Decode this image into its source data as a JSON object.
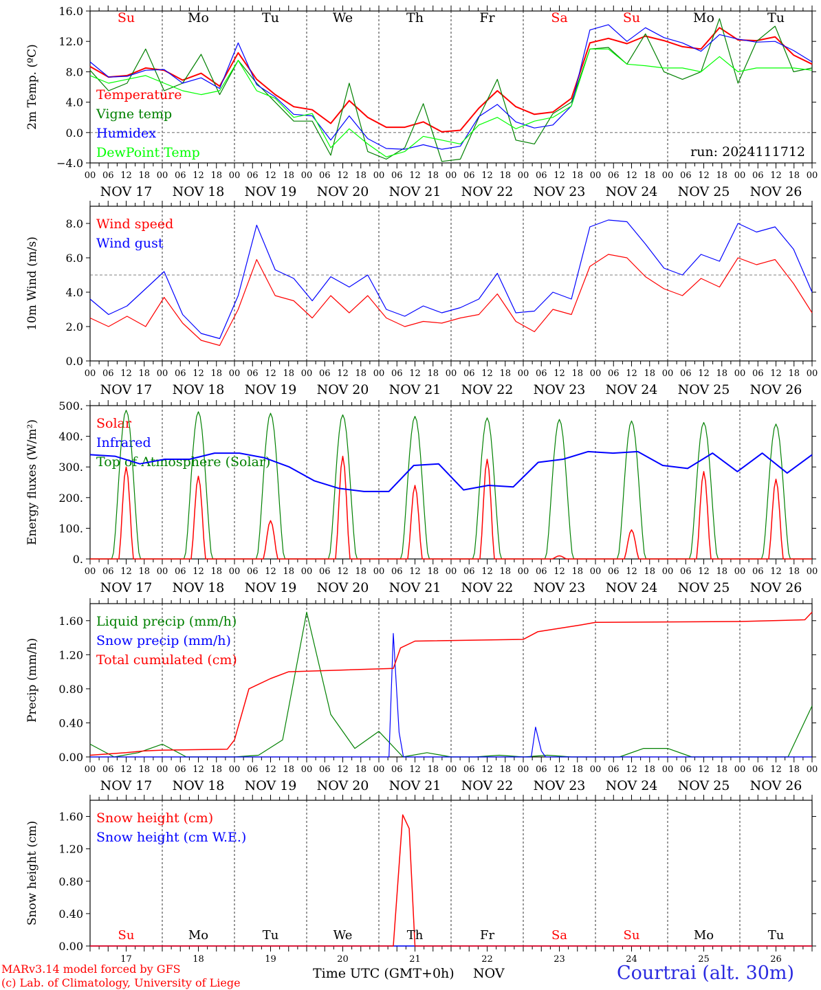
{
  "chart_data": [
    {
      "type": "line",
      "ylabel": "2m Temp. (ºC)",
      "ylim": [
        -4,
        16
      ],
      "yticks": [
        "−4.0",
        "0.0",
        "4.0",
        "8.0",
        "12.0",
        "16.0"
      ],
      "reference_line": 0,
      "weekday_labels": [
        "Su",
        "Mo",
        "Tu",
        "We",
        "Th",
        "Fr",
        "Sa",
        "Su",
        "Mo",
        "Tu"
      ],
      "annotation": "run: 2024111712",
      "series": [
        {
          "name": "Temperature",
          "color": "#ff0000",
          "values": [
            8.7,
            7.3,
            7.5,
            8.5,
            8.2,
            6.9,
            7.8,
            6.1,
            10.5,
            7.0,
            5.0,
            3.4,
            3.0,
            1.2,
            4.2,
            2.0,
            0.7,
            0.7,
            1.4,
            0.1,
            0.3,
            3.2,
            5.5,
            3.4,
            2.4,
            2.7,
            4.5,
            11.8,
            12.4,
            11.7,
            12.7,
            12.1,
            11.3,
            11.0,
            13.8,
            12.2,
            12.1,
            12.6,
            10.2,
            9.0
          ]
        },
        {
          "name": "Vigne temp",
          "color": "#008000",
          "values": [
            8.2,
            5.5,
            6.5,
            11.0,
            5.5,
            6.5,
            10.3,
            5.0,
            9.5,
            6.5,
            4.0,
            1.5,
            1.5,
            -3.0,
            6.5,
            -2.5,
            -3.5,
            -2.0,
            3.8,
            -3.8,
            -3.5,
            2.0,
            7.0,
            -1.0,
            -1.5,
            2.5,
            4.0,
            11.0,
            11.2,
            9.0,
            13.0,
            8.0,
            7.0,
            8.0,
            15.0,
            6.5,
            12.0,
            14.0,
            8.0,
            8.5
          ]
        },
        {
          "name": "Humidex",
          "color": "#0000ff",
          "values": [
            9.3,
            7.3,
            7.4,
            8.2,
            8.3,
            6.5,
            7.2,
            5.8,
            11.8,
            6.3,
            4.7,
            2.4,
            2.2,
            -1.0,
            2.2,
            -0.8,
            -2.1,
            -2.2,
            -1.6,
            -2.2,
            -1.8,
            2.1,
            3.7,
            1.4,
            0.6,
            1.0,
            3.5,
            13.5,
            14.2,
            12.0,
            13.8,
            12.5,
            11.8,
            10.7,
            12.9,
            12.3,
            11.9,
            12.0,
            10.8,
            9.3
          ]
        },
        {
          "name": "DewPoint Temp",
          "color": "#00ff00",
          "values": [
            7.5,
            6.5,
            7.0,
            7.5,
            6.5,
            5.5,
            5.0,
            5.5,
            9.5,
            5.5,
            4.5,
            2.0,
            2.5,
            -2.0,
            0.5,
            -1.5,
            -3.2,
            -2.5,
            -0.5,
            -1.0,
            -1.5,
            1.0,
            2.0,
            0.5,
            1.5,
            2.0,
            3.5,
            11.0,
            11.0,
            9.0,
            8.8,
            8.5,
            8.5,
            8.0,
            10.0,
            8.0,
            8.5,
            8.5,
            8.5,
            8.2
          ]
        }
      ]
    },
    {
      "type": "line",
      "ylabel": "10m Wind (m/s)",
      "ylim": [
        0,
        9
      ],
      "yticks": [
        "0.0",
        "2.0",
        "4.0",
        "6.0",
        "8.0"
      ],
      "reference_line": 5,
      "series": [
        {
          "name": "Wind speed",
          "color": "#ff0000",
          "values": [
            2.5,
            2.0,
            2.6,
            2.0,
            3.7,
            2.2,
            1.2,
            0.9,
            3.0,
            5.9,
            3.8,
            3.5,
            2.5,
            3.8,
            2.8,
            3.8,
            2.5,
            2.0,
            2.3,
            2.2,
            2.5,
            2.7,
            3.9,
            2.3,
            1.7,
            3.0,
            2.7,
            5.5,
            6.2,
            6.0,
            4.9,
            4.2,
            3.8,
            4.8,
            4.3,
            6.0,
            5.6,
            5.9,
            4.5,
            2.8
          ]
        },
        {
          "name": "Wind gust",
          "color": "#0000ff",
          "values": [
            3.6,
            2.7,
            3.2,
            4.2,
            5.2,
            2.7,
            1.6,
            1.3,
            3.8,
            7.9,
            5.3,
            4.8,
            3.5,
            4.9,
            4.3,
            5.0,
            3.0,
            2.6,
            3.2,
            2.8,
            3.1,
            3.6,
            5.1,
            2.8,
            2.9,
            4.0,
            3.6,
            7.8,
            8.2,
            8.1,
            6.8,
            5.4,
            5.0,
            6.2,
            5.8,
            8.0,
            7.5,
            7.8,
            6.5,
            4.0
          ]
        }
      ]
    },
    {
      "type": "line",
      "ylabel": "Energy fluxes (W/m²)",
      "ylim": [
        0,
        500
      ],
      "yticks": [
        "0.",
        "100.",
        "200.",
        "300.",
        "400.",
        "500."
      ],
      "day_peaks": {
        "Solar": [
          300,
          270,
          125,
          335,
          240,
          325,
          10,
          95,
          285,
          260
        ],
        "Top of Atmosphere (Solar)": [
          485,
          480,
          475,
          470,
          465,
          460,
          455,
          450,
          445,
          440
        ]
      },
      "infrared": [
        340,
        335,
        310,
        325,
        325,
        345,
        345,
        330,
        300,
        255,
        230,
        220,
        220,
        305,
        310,
        225,
        240,
        235,
        315,
        325,
        350,
        345,
        350,
        305,
        295,
        345,
        285,
        345,
        280,
        340
      ]
    },
    {
      "type": "line",
      "ylabel": "Precip (mm/h)",
      "ylim": [
        0,
        1.8
      ],
      "yticks": [
        "0.00",
        "0.40",
        "0.80",
        "1.20",
        "1.60"
      ],
      "liquid": [
        0.15,
        0.0,
        0.05,
        0.15,
        0.0,
        0.0,
        0.0,
        0.02,
        0.2,
        1.7,
        0.5,
        0.1,
        0.3,
        0.0,
        0.05,
        0.0,
        0.0,
        0.02,
        0.0,
        0.02,
        0.0,
        0.0,
        0.0,
        0.1,
        0.1,
        0.0,
        0.0,
        0.0,
        0.0,
        0.0,
        0.6
      ],
      "snow_peaks": [
        {
          "day": 4.2,
          "value": 1.45
        },
        {
          "day": 6.17,
          "value": 0.35
        }
      ],
      "cumulated": [
        [
          0,
          0.02
        ],
        [
          0.5,
          0.05
        ],
        [
          0.75,
          0.07
        ],
        [
          1.0,
          0.08
        ],
        [
          1.9,
          0.09
        ],
        [
          2.0,
          0.2
        ],
        [
          2.2,
          0.8
        ],
        [
          2.5,
          0.92
        ],
        [
          2.75,
          1.0
        ],
        [
          3.5,
          1.02
        ],
        [
          4.2,
          1.04
        ],
        [
          4.3,
          1.28
        ],
        [
          4.5,
          1.36
        ],
        [
          6.0,
          1.38
        ],
        [
          6.2,
          1.47
        ],
        [
          6.8,
          1.55
        ],
        [
          7.0,
          1.58
        ],
        [
          9.0,
          1.59
        ],
        [
          9.9,
          1.61
        ],
        [
          10.0,
          1.7
        ]
      ]
    },
    {
      "type": "line",
      "ylabel": "Snow height (cm)",
      "ylim": [
        0,
        1.8
      ],
      "yticks": [
        "0.00",
        "0.40",
        "0.80",
        "1.20",
        "1.60"
      ],
      "snow_cm": [
        [
          0,
          0
        ],
        [
          4.2,
          0
        ],
        [
          4.33,
          1.62
        ],
        [
          4.42,
          1.45
        ],
        [
          4.5,
          0
        ],
        [
          10,
          0
        ]
      ],
      "bottom_weekday_labels": [
        "Su",
        "Mo",
        "Tu",
        "We",
        "Th",
        "Fr",
        "Sa",
        "Su",
        "Mo",
        "Tu"
      ],
      "bottom_day_numbers": [
        "17",
        "18",
        "19",
        "20",
        "21",
        "22",
        "23",
        "24",
        "25",
        "26"
      ]
    }
  ],
  "panel_legends": [
    [
      "Temperature",
      "Vigne temp",
      "Humidex",
      "DewPoint Temp"
    ],
    [
      "Wind speed",
      "Wind gust"
    ],
    [
      "Solar",
      "Infrared",
      "Top of Atmosphere (Solar)"
    ],
    [
      "Liquid precip (mm/h)",
      "Snow precip (mm/h)",
      "Total cumulated (cm)"
    ],
    [
      "Snow height (cm)",
      "Snow height (cm W.E.)"
    ]
  ],
  "legend_colors": [
    [
      "#ff0000",
      "#008000",
      "#0000ff",
      "#00ff00"
    ],
    [
      "#ff0000",
      "#0000ff"
    ],
    [
      "#ff0000",
      "#0000ff",
      "#008000"
    ],
    [
      "#008000",
      "#0000ff",
      "#ff0000"
    ],
    [
      "#ff0000",
      "#0000ff"
    ]
  ],
  "hour_labels": [
    "00",
    "06",
    "12",
    "18"
  ],
  "date_labels": [
    "NOV 17",
    "NOV 18",
    "NOV 19",
    "NOV 20",
    "NOV 21",
    "NOV 22",
    "NOV 23",
    "NOV 24",
    "NOV 25",
    "NOV 26"
  ],
  "weekend_indices": [
    0,
    6,
    7
  ],
  "footer": {
    "model": "MARv3.14 model forced by GFS",
    "credit": "(c) Lab. of Climatology, University of Liege",
    "xlabel": "Time UTC (GMT+0h)",
    "month": "NOV",
    "station": "Courtrai (alt. 30m)"
  }
}
